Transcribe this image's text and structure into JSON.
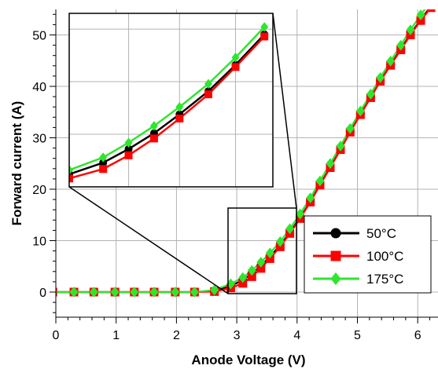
{
  "chart_data": {
    "type": "line",
    "title": "",
    "xlabel": "Anode Voltage (V)",
    "ylabel": "Forward current (A)",
    "xlim": [
      -0.05,
      6.5
    ],
    "ylim": [
      -5,
      55
    ],
    "grid": true,
    "legend_position": "bottom-right",
    "x_ticks": [
      0,
      1,
      2,
      3,
      4,
      5,
      6
    ],
    "y_ticks": [
      0,
      10,
      20,
      30,
      40,
      50
    ],
    "x": [
      -0.05,
      0.3,
      0.63,
      0.98,
      1.3,
      1.63,
      1.98,
      2.3,
      2.63,
      2.9,
      3.1,
      3.25,
      3.4,
      3.55,
      3.72,
      3.88,
      4.05,
      4.22,
      4.38,
      4.55,
      4.72,
      4.88,
      5.05,
      5.22,
      5.38,
      5.55,
      5.72,
      5.88,
      6.05,
      6.22,
      6.38,
      6.5
    ],
    "series": [
      {
        "name": "50°C",
        "color": "#000000",
        "marker": "circle",
        "values": [
          0,
          0,
          0,
          0,
          0,
          0,
          0,
          0,
          0.2,
          1.2,
          2.3,
          3.6,
          5.1,
          6.9,
          9.1,
          11.6,
          14.5,
          17.6,
          20.9,
          24.3,
          27.8,
          31.2,
          34.6,
          37.9,
          41.1,
          44.2,
          47.3,
          50.2,
          53.0,
          55.6,
          58.0,
          59.7
        ]
      },
      {
        "name": "100°C",
        "color": "#ff0000",
        "marker": "square",
        "values": [
          0,
          0,
          0,
          0,
          0,
          0,
          0,
          0,
          0.1,
          0.8,
          1.7,
          3.0,
          4.6,
          6.5,
          8.8,
          11.4,
          14.3,
          17.5,
          20.8,
          24.2,
          27.7,
          31.1,
          34.5,
          37.8,
          41.0,
          44.1,
          47.1,
          50.0,
          52.8,
          55.3,
          57.6,
          59.2
        ]
      },
      {
        "name": "175°C",
        "color": "#2ee62e",
        "marker": "diamond",
        "values": [
          0,
          0,
          0,
          0,
          0,
          0,
          0,
          0,
          0.4,
          1.6,
          2.8,
          4.2,
          5.8,
          7.6,
          9.8,
          12.3,
          15.2,
          18.3,
          21.6,
          25.0,
          28.4,
          31.8,
          35.2,
          38.5,
          41.7,
          44.9,
          48.0,
          51.0,
          53.9,
          56.6,
          59.0,
          60.8
        ]
      }
    ],
    "inset": {
      "source_xlim": [
        2.9,
        4.1
      ],
      "source_ylim": [
        0,
        16.5
      ],
      "x": [
        2.9,
        3.1,
        3.25,
        3.4,
        3.55,
        3.72,
        3.88,
        4.05
      ],
      "series_values": [
        [
          1.2,
          2.3,
          3.6,
          5.1,
          6.9,
          9.1,
          11.6,
          14.5
        ],
        [
          0.8,
          1.7,
          3.0,
          4.6,
          6.5,
          8.8,
          11.4,
          14.3
        ],
        [
          1.6,
          2.8,
          4.2,
          5.8,
          7.6,
          9.8,
          12.3,
          15.2
        ]
      ]
    }
  }
}
